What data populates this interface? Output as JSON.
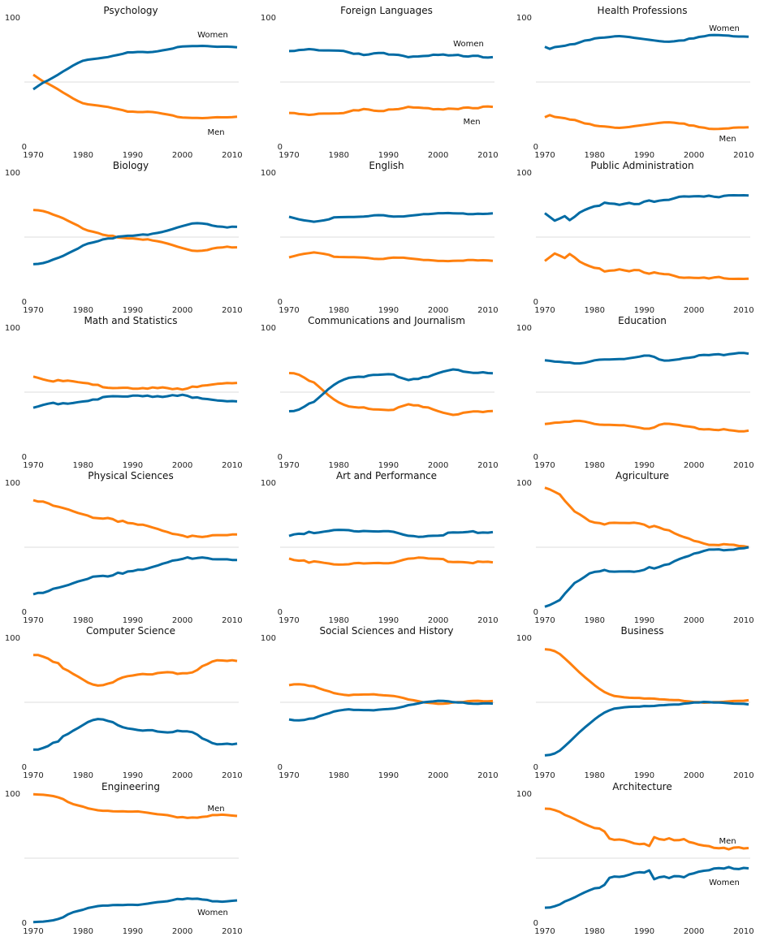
{
  "chart_data": {
    "type": "line",
    "layout": "grid of small multiples, 6 rows x 3 columns",
    "x": [
      1970,
      1971,
      1972,
      1973,
      1974,
      1975,
      1976,
      1977,
      1978,
      1979,
      1980,
      1981,
      1982,
      1983,
      1984,
      1985,
      1986,
      1987,
      1988,
      1989,
      1990,
      1991,
      1992,
      1993,
      1994,
      1995,
      1996,
      1997,
      1998,
      1999,
      2000,
      2001,
      2002,
      2003,
      2004,
      2005,
      2006,
      2007,
      2008,
      2009,
      2010,
      2011
    ],
    "xticks": [
      "1970",
      "1980",
      "1990",
      "2000",
      "2010"
    ],
    "yticks": [
      "0",
      "100"
    ],
    "ylim": [
      0,
      100
    ],
    "gridline_y": 50,
    "series_colors": {
      "Women": "#006ba4",
      "Men": "#ff800e"
    },
    "series_names": [
      "Women",
      "Men"
    ],
    "note": "Men values = 100 - Women values",
    "panels": [
      {
        "title": "Psychology",
        "row": 0,
        "col": 0,
        "labels": {
          "Women": "top",
          "Men": "bottom"
        },
        "women": [
          44.4,
          47.0,
          49.5,
          51.4,
          53.5,
          55.7,
          58.1,
          60.4,
          62.7,
          64.7,
          66.4,
          67.2,
          67.7,
          68.1,
          68.7,
          69.2,
          70.1,
          70.9,
          71.7,
          72.8,
          72.8,
          73.1,
          73.1,
          72.9,
          73.1,
          73.6,
          74.4,
          75.0,
          75.7,
          76.9,
          77.3,
          77.5,
          77.6,
          77.7,
          77.8,
          77.6,
          77.4,
          77.1,
          77.2,
          77.2,
          77.0,
          76.7
        ]
      },
      {
        "title": "Foreign Languages",
        "row": 0,
        "col": 1,
        "labels": {
          "Women": "top",
          "Men": "bottom"
        },
        "women": [
          73.8,
          73.9,
          74.6,
          74.9,
          75.3,
          75.0,
          74.4,
          74.3,
          74.3,
          74.2,
          74.1,
          73.9,
          72.8,
          71.7,
          71.9,
          70.8,
          71.2,
          72.0,
          72.3,
          72.4,
          71.2,
          71.1,
          70.9,
          70.1,
          69.1,
          69.6,
          69.7,
          70.0,
          70.1,
          71.0,
          70.9,
          71.2,
          70.5,
          70.6,
          70.9,
          69.9,
          69.6,
          70.2,
          70.2,
          69.0,
          68.8,
          69.1
        ]
      },
      {
        "title": "Health Professions",
        "row": 0,
        "col": 2,
        "labels": {
          "Women": "top",
          "Men": "bottom"
        },
        "women": [
          77.1,
          75.5,
          76.9,
          77.4,
          77.9,
          78.9,
          79.2,
          80.5,
          81.9,
          82.3,
          83.5,
          84.0,
          84.2,
          84.6,
          85.1,
          85.3,
          85.0,
          84.6,
          84.0,
          83.5,
          83.0,
          82.5,
          82.0,
          81.5,
          81.1,
          81.0,
          81.3,
          81.9,
          82.0,
          83.4,
          83.6,
          84.7,
          85.1,
          86.0,
          86.2,
          86.1,
          85.9,
          85.7,
          85.1,
          85.0,
          85.0,
          84.8
        ]
      },
      {
        "title": "Biology",
        "row": 1,
        "col": 0,
        "labels": {},
        "women": [
          29.1,
          29.4,
          30.0,
          31.1,
          32.7,
          34.0,
          35.5,
          37.5,
          39.4,
          41.2,
          43.5,
          45.0,
          45.9,
          46.8,
          48.2,
          48.9,
          49.0,
          50.3,
          50.6,
          51.0,
          51.0,
          51.5,
          52.0,
          51.7,
          52.6,
          53.2,
          54.0,
          55.0,
          56.1,
          57.4,
          58.5,
          59.5,
          60.5,
          60.7,
          60.5,
          60.0,
          58.9,
          58.2,
          58.0,
          57.4,
          58.0,
          57.9
        ]
      },
      {
        "title": "English",
        "row": 1,
        "col": 1,
        "labels": {},
        "women": [
          65.6,
          64.6,
          63.6,
          62.9,
          62.4,
          61.8,
          62.3,
          62.9,
          63.6,
          65.1,
          65.3,
          65.4,
          65.5,
          65.5,
          65.6,
          65.8,
          66.1,
          66.7,
          66.9,
          66.8,
          66.2,
          65.8,
          65.9,
          65.9,
          66.3,
          66.7,
          67.1,
          67.6,
          67.7,
          68.0,
          68.4,
          68.4,
          68.5,
          68.3,
          68.2,
          68.2,
          67.6,
          67.7,
          68.0,
          67.8,
          68.0,
          68.3
        ]
      },
      {
        "title": "Public Administration",
        "row": 1,
        "col": 2,
        "labels": {},
        "women": [
          68.4,
          65.5,
          62.6,
          64.3,
          66.1,
          63.0,
          65.6,
          68.9,
          70.8,
          72.4,
          73.7,
          74.1,
          76.5,
          75.9,
          75.6,
          74.8,
          75.6,
          76.3,
          75.4,
          75.5,
          77.3,
          78.2,
          77.2,
          78.0,
          78.5,
          78.7,
          79.8,
          81.0,
          81.3,
          81.2,
          81.4,
          81.5,
          81.2,
          81.9,
          81.1,
          80.7,
          81.7,
          82.1,
          82.2,
          82.1,
          82.2,
          82.0
        ]
      },
      {
        "title": "Math and Statistics",
        "row": 2,
        "col": 0,
        "labels": {},
        "women": [
          38.0,
          39.0,
          40.2,
          41.1,
          41.8,
          40.7,
          41.5,
          41.1,
          41.6,
          42.3,
          42.8,
          43.2,
          44.3,
          44.4,
          46.2,
          46.6,
          46.9,
          46.8,
          46.6,
          46.6,
          47.3,
          47.4,
          46.9,
          47.3,
          46.4,
          46.9,
          46.3,
          46.9,
          47.7,
          47.2,
          48.0,
          47.2,
          45.7,
          46.0,
          45.0,
          44.7,
          44.1,
          43.6,
          43.4,
          43.0,
          43.1,
          42.9
        ]
      },
      {
        "title": "Communications and Journalism",
        "row": 2,
        "col": 1,
        "labels": {},
        "women": [
          35.3,
          35.5,
          36.6,
          38.7,
          41.2,
          42.5,
          45.8,
          49.2,
          52.6,
          55.5,
          57.9,
          59.6,
          61.0,
          61.5,
          61.9,
          61.7,
          62.8,
          63.3,
          63.4,
          63.6,
          63.8,
          63.6,
          61.7,
          60.5,
          59.3,
          60.1,
          60.2,
          61.5,
          61.8,
          63.3,
          64.6,
          65.8,
          66.7,
          67.5,
          67.1,
          65.9,
          65.4,
          64.9,
          64.8,
          65.3,
          64.7,
          64.5
        ]
      },
      {
        "title": "Education",
        "row": 2,
        "col": 2,
        "labels": {},
        "women": [
          74.5,
          74.1,
          73.5,
          73.4,
          72.9,
          72.8,
          72.1,
          72.1,
          72.6,
          73.5,
          74.5,
          75.0,
          75.2,
          75.1,
          75.3,
          75.5,
          75.5,
          76.1,
          76.7,
          77.3,
          78.1,
          78.1,
          77.1,
          75.2,
          74.3,
          74.4,
          74.9,
          75.3,
          76.1,
          76.5,
          77.0,
          78.4,
          78.7,
          78.5,
          79.0,
          79.2,
          78.5,
          79.2,
          79.6,
          80.1,
          80.2,
          79.6
        ]
      },
      {
        "title": "Physical Sciences",
        "row": 3,
        "col": 0,
        "labels": {},
        "women": [
          13.8,
          14.9,
          14.9,
          16.2,
          18.0,
          18.8,
          19.8,
          20.9,
          22.3,
          23.6,
          24.6,
          25.7,
          27.3,
          27.6,
          28.0,
          27.5,
          28.4,
          30.4,
          29.7,
          31.3,
          31.6,
          32.6,
          32.6,
          33.6,
          34.8,
          35.9,
          37.3,
          38.3,
          39.7,
          40.2,
          41.0,
          42.2,
          41.1,
          41.7,
          42.1,
          41.6,
          40.8,
          40.7,
          40.7,
          40.7,
          40.2,
          40.1
        ]
      },
      {
        "title": "Art and Performance",
        "row": 3,
        "col": 1,
        "labels": {},
        "women": [
          58.7,
          59.9,
          60.4,
          60.2,
          61.9,
          60.9,
          61.3,
          62.0,
          62.5,
          63.2,
          63.4,
          63.3,
          63.1,
          62.4,
          62.1,
          62.5,
          62.3,
          62.2,
          62.1,
          62.3,
          62.3,
          61.9,
          60.8,
          59.7,
          58.8,
          58.6,
          58.0,
          58.1,
          58.7,
          58.8,
          58.9,
          59.1,
          61.2,
          61.4,
          61.3,
          61.5,
          61.8,
          62.3,
          61.0,
          61.3,
          61.2,
          61.6
        ]
      },
      {
        "title": "Agriculture",
        "row": 3,
        "col": 2,
        "labels": {},
        "women": [
          4.2,
          5.5,
          7.4,
          9.4,
          14.1,
          18.3,
          22.5,
          24.7,
          27.2,
          29.9,
          31.0,
          31.4,
          32.5,
          31.3,
          31.2,
          31.3,
          31.3,
          31.4,
          31.1,
          31.7,
          32.6,
          34.6,
          33.6,
          34.8,
          36.3,
          37.0,
          39.1,
          40.8,
          42.2,
          43.3,
          45.1,
          45.9,
          47.1,
          48.2,
          48.2,
          48.4,
          47.6,
          48.0,
          48.1,
          49.0,
          49.2,
          50.0
        ]
      },
      {
        "title": "Computer Science",
        "row": 4,
        "col": 0,
        "labels": {},
        "women": [
          13.6,
          13.6,
          14.9,
          16.4,
          18.9,
          19.8,
          23.9,
          25.7,
          28.1,
          30.2,
          32.5,
          34.8,
          36.3,
          37.1,
          36.8,
          35.7,
          34.7,
          32.4,
          30.8,
          29.9,
          29.4,
          28.7,
          28.2,
          28.5,
          28.5,
          27.5,
          27.1,
          26.8,
          27.0,
          28.1,
          27.7,
          27.6,
          27.0,
          25.1,
          22.2,
          20.6,
          18.6,
          17.6,
          17.8,
          18.1,
          17.6,
          18.2
        ]
      },
      {
        "title": "Social Sciences and History",
        "row": 4,
        "col": 1,
        "labels": {},
        "women": [
          36.8,
          36.2,
          36.1,
          36.4,
          37.3,
          37.7,
          39.2,
          40.5,
          41.5,
          42.9,
          43.6,
          44.2,
          44.6,
          44.1,
          44.1,
          44.0,
          44.0,
          43.8,
          44.3,
          44.6,
          44.8,
          45.1,
          45.8,
          46.7,
          47.8,
          48.4,
          49.1,
          50.0,
          50.4,
          50.7,
          51.2,
          51.1,
          50.8,
          50.1,
          49.8,
          49.8,
          49.1,
          48.9,
          48.8,
          49.1,
          49.2,
          49.0
        ]
      },
      {
        "title": "Business",
        "row": 4,
        "col": 2,
        "labels": {},
        "women": [
          9.1,
          9.5,
          10.6,
          12.8,
          16.2,
          19.7,
          23.4,
          27.1,
          30.5,
          33.6,
          36.8,
          39.6,
          42.1,
          43.8,
          45.2,
          45.6,
          46.2,
          46.5,
          46.6,
          46.6,
          47.1,
          47.0,
          47.2,
          47.6,
          47.8,
          48.1,
          48.3,
          48.3,
          49.0,
          49.3,
          49.8,
          49.9,
          50.3,
          50.1,
          49.8,
          49.8,
          49.6,
          49.3,
          49.0,
          48.9,
          48.8,
          48.4
        ]
      },
      {
        "title": "Engineering",
        "row": 5,
        "col": 0,
        "labels": {
          "Women": "bottom",
          "Men": "top"
        },
        "women": [
          0.8,
          1.0,
          1.2,
          1.6,
          2.2,
          3.2,
          4.5,
          6.8,
          8.4,
          9.4,
          10.3,
          11.6,
          12.4,
          13.1,
          13.5,
          13.5,
          13.9,
          14.0,
          13.9,
          14.1,
          14.1,
          14.0,
          14.5,
          15.0,
          15.6,
          16.2,
          16.5,
          16.9,
          17.7,
          18.6,
          18.4,
          19.0,
          18.7,
          18.8,
          18.2,
          17.9,
          16.8,
          16.8,
          16.5,
          16.8,
          17.2,
          17.5
        ]
      },
      {
        "title": "Architecture",
        "row": 5,
        "col": 2,
        "labels": {
          "Women": "bottom",
          "Men": "top"
        },
        "women": [
          11.9,
          12.0,
          13.0,
          14.4,
          16.6,
          18.1,
          19.8,
          21.8,
          23.7,
          25.3,
          26.8,
          27.2,
          29.5,
          34.9,
          35.9,
          35.6,
          36.2,
          37.3,
          38.6,
          39.2,
          38.9,
          40.6,
          33.8,
          35.3,
          35.9,
          34.7,
          36.2,
          36.1,
          35.3,
          37.5,
          38.4,
          39.6,
          40.3,
          40.7,
          42.0,
          42.4,
          42.0,
          43.2,
          41.9,
          41.6,
          42.5,
          42.2
        ]
      }
    ]
  }
}
